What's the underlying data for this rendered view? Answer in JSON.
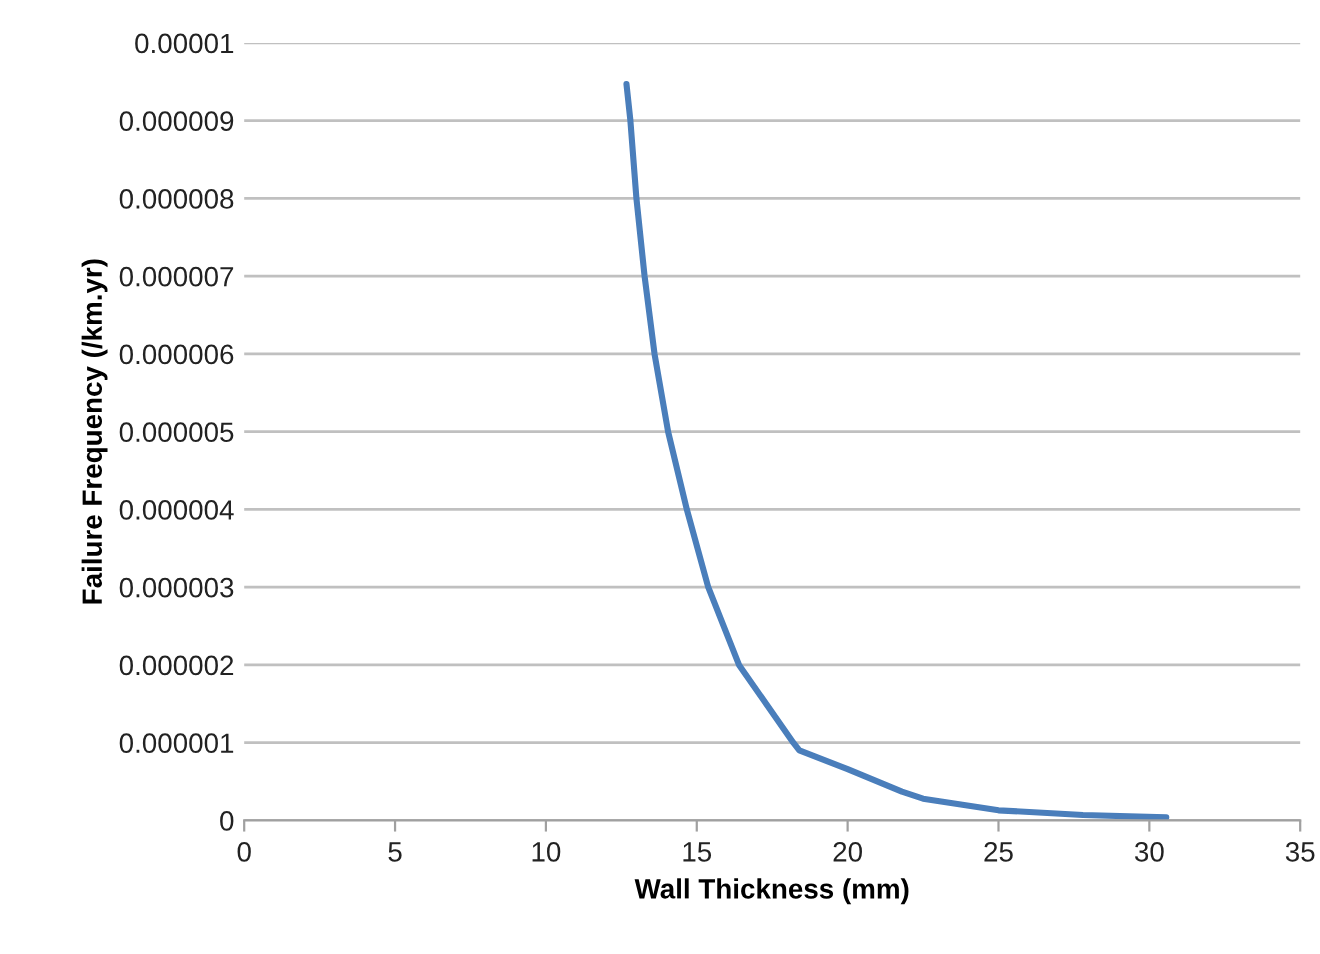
{
  "chart_data": {
    "type": "line",
    "xlabel": "Wall Thickness (mm)",
    "ylabel": "Failure Frequency (/km.yr)",
    "x": [
      12.67,
      12.8,
      13.0,
      13.27,
      13.6,
      14.05,
      14.67,
      15.38,
      16.4,
      18.2,
      18.4,
      20.0,
      21.8,
      22.5,
      25.0,
      27.8,
      30.56
    ],
    "series": [
      {
        "color": "#4a7ebb",
        "values": [
          9.47e-06,
          9e-06,
          8e-06,
          7e-06,
          6e-06,
          5e-06,
          4e-06,
          3e-06,
          2e-06,
          1e-06,
          9e-07,
          6.6e-07,
          3.7e-07,
          2.8e-07,
          1.3e-07,
          7e-08,
          4e-08
        ]
      }
    ],
    "xlim": [
      0,
      35
    ],
    "xticks": [
      0,
      5,
      10,
      15,
      20,
      25,
      30,
      35
    ],
    "ylim": [
      0,
      1e-05
    ],
    "yticks": [
      {
        "value": 0,
        "label": "0"
      },
      {
        "value": 1e-06,
        "label": "0.000001"
      },
      {
        "value": 2e-06,
        "label": "0.000002"
      },
      {
        "value": 3e-06,
        "label": "0.000003"
      },
      {
        "value": 4e-06,
        "label": "0.000004"
      },
      {
        "value": 5e-06,
        "label": "0.000005"
      },
      {
        "value": 6e-06,
        "label": "0.000006"
      },
      {
        "value": 7e-06,
        "label": "0.000007"
      },
      {
        "value": 8e-06,
        "label": "0.000008"
      },
      {
        "value": 9e-06,
        "label": "0.000009"
      },
      {
        "value": 1e-05,
        "label": "0.00001"
      }
    ],
    "grid": "y",
    "marker": "none",
    "line_style": "solid",
    "legend": false
  }
}
